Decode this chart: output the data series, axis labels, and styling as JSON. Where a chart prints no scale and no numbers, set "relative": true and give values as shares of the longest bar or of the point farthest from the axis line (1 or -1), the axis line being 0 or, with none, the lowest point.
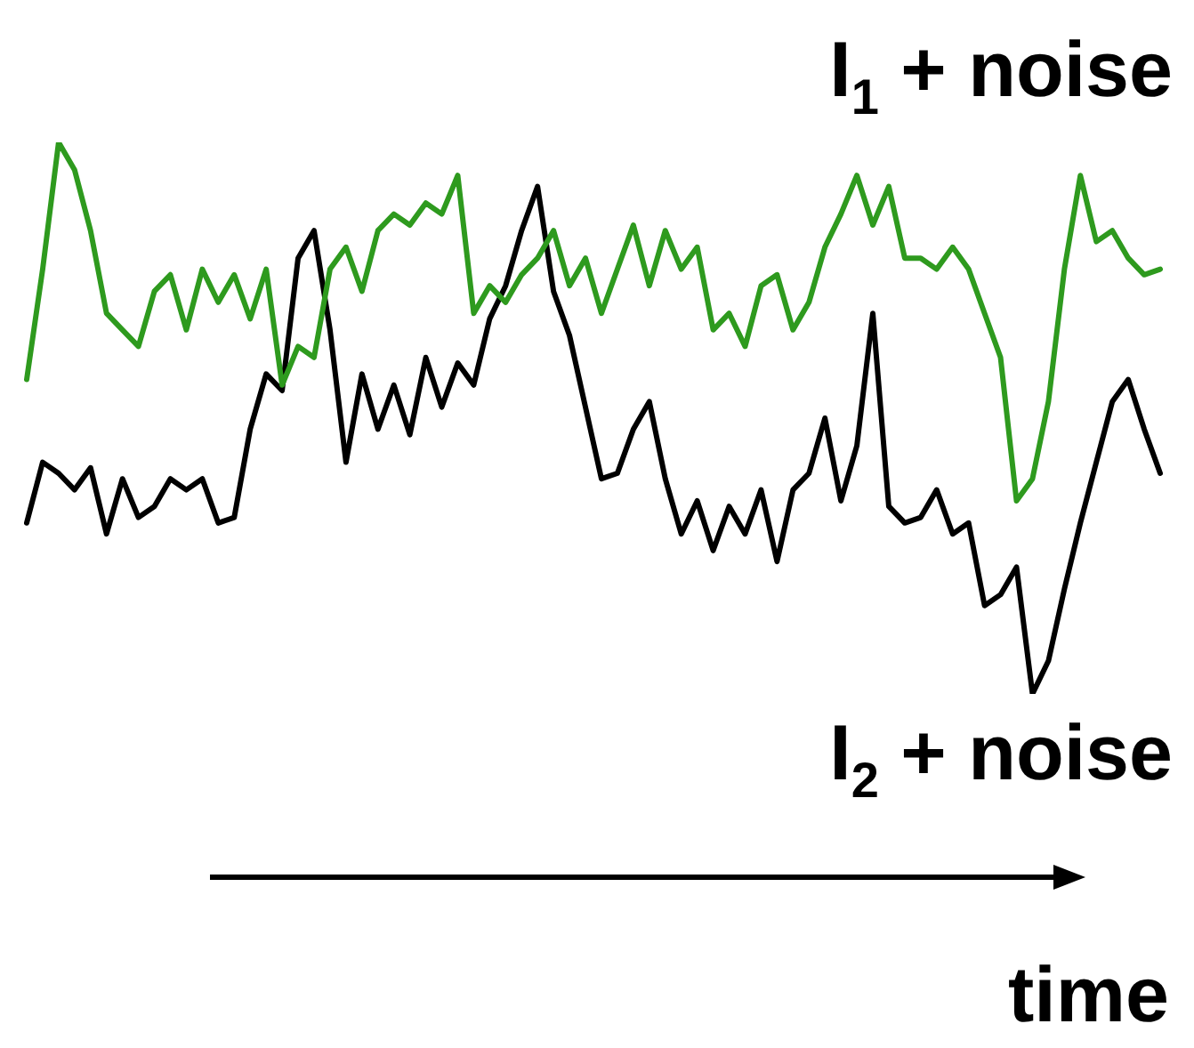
{
  "chart_data": {
    "type": "line",
    "relative": true,
    "xlabel": "time",
    "legend": false,
    "marker": "none",
    "categories": [
      null,
      null,
      null,
      null,
      null,
      null,
      null,
      null,
      null,
      null,
      null,
      null,
      null,
      null,
      null,
      null,
      null,
      null,
      null,
      null,
      null,
      null,
      null,
      null,
      null,
      null,
      null,
      null,
      null,
      null,
      null,
      null,
      null,
      null,
      null,
      null,
      null,
      null,
      null,
      null,
      null,
      null,
      null,
      null,
      null,
      null,
      null,
      null,
      null,
      null,
      null,
      null,
      null,
      null,
      null,
      null,
      null,
      null,
      null,
      null,
      null,
      null,
      null,
      null,
      null,
      null,
      null,
      null,
      null,
      null,
      null,
      null
    ],
    "series": [
      {
        "name": "I$_{1}$ + noise",
        "color": "#2e9a1e",
        "values": [
          0.57,
          0.77,
          1,
          0.95,
          0.84,
          0.69,
          0.66,
          0.63,
          0.73,
          0.76,
          0.66,
          0.77,
          0.71,
          0.76,
          0.68,
          0.77,
          0.56,
          0.63,
          0.61,
          0.77,
          0.81,
          0.73,
          0.84,
          0.87,
          0.85,
          0.89,
          0.87,
          0.94,
          0.69,
          0.74,
          0.71,
          0.76,
          0.79,
          0.84,
          0.74,
          0.79,
          0.69,
          0.77,
          0.85,
          0.74,
          0.84,
          0.77,
          0.81,
          0.66,
          0.69,
          0.63,
          0.74,
          0.76,
          0.66,
          0.71,
          0.81,
          0.87,
          0.94,
          0.85,
          0.92,
          0.79,
          0.79,
          0.77,
          0.81,
          0.77,
          0.69,
          0.61,
          0.35,
          0.39,
          0.53,
          0.77,
          0.94,
          0.82,
          0.84,
          0.79,
          0.76,
          0.77
        ]
      },
      {
        "name": "I$_{2}$ + noise",
        "color": "#000000",
        "values": [
          0.31,
          0.42,
          0.4,
          0.37,
          0.41,
          0.29,
          0.39,
          0.32,
          0.34,
          0.39,
          0.37,
          0.39,
          0.31,
          0.32,
          0.48,
          0.58,
          0.55,
          0.79,
          0.84,
          0.66,
          0.42,
          0.58,
          0.48,
          0.56,
          0.47,
          0.61,
          0.52,
          0.6,
          0.56,
          0.68,
          0.74,
          0.84,
          0.92,
          0.73,
          0.65,
          0.52,
          0.39,
          0.4,
          0.48,
          0.53,
          0.39,
          0.29,
          0.35,
          0.26,
          0.34,
          0.29,
          0.37,
          0.24,
          0.37,
          0.4,
          0.5,
          0.35,
          0.45,
          0.69,
          0.34,
          0.31,
          0.32,
          0.37,
          0.29,
          0.31,
          0.16,
          0.18,
          0.23,
          0,
          0.06,
          0.19,
          0.31,
          0.42,
          0.53,
          0.57,
          0.48,
          0.4
        ]
      }
    ]
  }
}
